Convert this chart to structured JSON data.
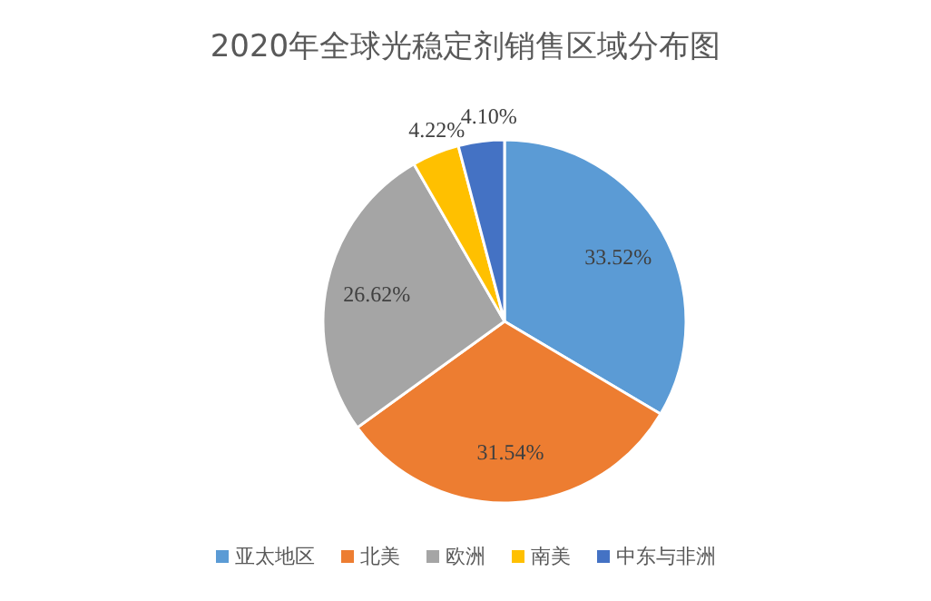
{
  "chart_data": {
    "type": "pie",
    "title": "2020年全球光稳定剂销售区域分布图",
    "categories": [
      "亚太地区",
      "北美",
      "欧洲",
      "南美",
      "中东与非洲"
    ],
    "values": [
      33.52,
      31.54,
      26.62,
      4.22,
      4.1
    ],
    "value_labels": [
      "33.52%",
      "31.54%",
      "26.62%",
      "4.22%",
      "4.10%"
    ],
    "colors": [
      "#5b9bd5",
      "#ed7d31",
      "#a5a5a5",
      "#ffc000",
      "#4472c4"
    ],
    "legend": "bottom"
  }
}
